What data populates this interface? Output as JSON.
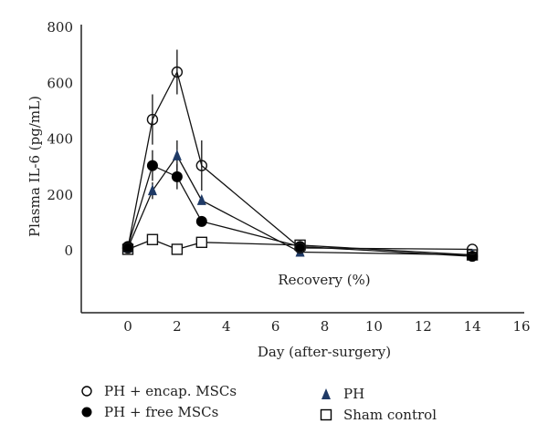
{
  "chart_data": {
    "type": "line",
    "title": "",
    "xlabel": "Day (after-surgery)",
    "ylabel": "Plasma IL-6 (pg/mL)",
    "annotation": "Recovery (%)",
    "xlim": [
      -2,
      16
    ],
    "ylim": [
      -220,
      800
    ],
    "x_ticks": [
      0,
      2,
      4,
      6,
      8,
      10,
      12,
      14,
      16
    ],
    "y_ticks": [
      0,
      200,
      400,
      600,
      800
    ],
    "grid": false,
    "legend_position": "bottom",
    "series": [
      {
        "name": "PH + encap. MSCs",
        "marker": "open-circle",
        "color": "#000000",
        "x": [
          0,
          1,
          2,
          3,
          7,
          14
        ],
        "values": [
          10,
          470,
          640,
          305,
          10,
          5
        ],
        "error": [
          0,
          90,
          80,
          90,
          0,
          0
        ]
      },
      {
        "name": "PH + free MSCs",
        "marker": "filled-circle",
        "color": "#000000",
        "x": [
          0,
          1,
          2,
          3,
          7,
          14
        ],
        "values": [
          15,
          305,
          265,
          105,
          15,
          -20
        ],
        "error": [
          0,
          55,
          45,
          0,
          0,
          0
        ]
      },
      {
        "name": "PH",
        "marker": "triangle",
        "color": "#1f3a66",
        "x": [
          0,
          1,
          2,
          3,
          7,
          14
        ],
        "values": [
          10,
          215,
          340,
          180,
          -5,
          -15
        ],
        "error": [
          0,
          30,
          55,
          0,
          0,
          0
        ]
      },
      {
        "name": "Sham control",
        "marker": "open-square",
        "color": "#000000",
        "x": [
          0,
          1,
          2,
          3,
          7,
          14
        ],
        "values": [
          5,
          40,
          5,
          30,
          20,
          -15
        ],
        "error": [
          0,
          0,
          0,
          0,
          0,
          0
        ]
      }
    ]
  }
}
